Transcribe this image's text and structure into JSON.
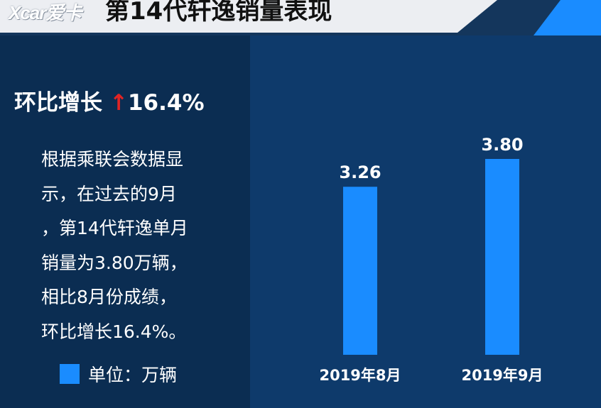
{
  "header": {
    "logo_text": "Xcar爱卡",
    "title": "第14代轩逸销量表现"
  },
  "headline": {
    "label": "环比增长",
    "arrow": "↑",
    "value": "16.4%"
  },
  "description_lines": [
    "根据乘联会数据显",
    "示，在过去的9月",
    "，第14代轩逸单月",
    "销量为3.80万辆，",
    "相比8月份成绩，",
    "环比增长16.4%。"
  ],
  "legend": {
    "label": "单位：万辆"
  },
  "colors": {
    "accent": "#1a8cff",
    "arrow": "#e02424",
    "background": "#0b2d52"
  },
  "chart_data": {
    "type": "bar",
    "categories": [
      "2019年8月",
      "2019年9月"
    ],
    "values": [
      3.26,
      3.8
    ],
    "value_labels": [
      "3.26",
      "3.80"
    ],
    "title": "",
    "xlabel": "",
    "ylabel": "",
    "ylim": [
      0,
      4.6
    ],
    "grid": false,
    "legend_placement": "bottom-left"
  }
}
